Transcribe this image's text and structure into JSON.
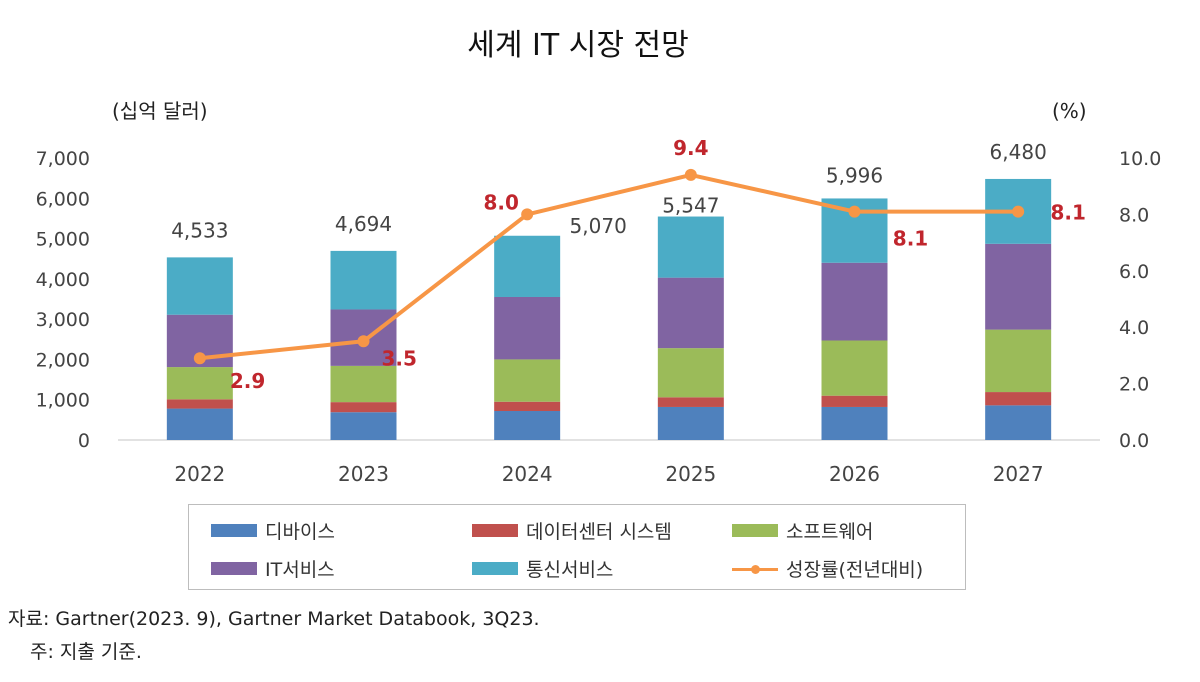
{
  "chart_data": {
    "type": "bar",
    "stacked": true,
    "title": "세계 IT 시장 전망",
    "ylabel_left": "(십억 달러)",
    "ylabel_right": "(%)",
    "categories": [
      "2022",
      "2023",
      "2024",
      "2025",
      "2026",
      "2027"
    ],
    "ylim_left": [
      0,
      7000
    ],
    "yticks_left": [
      "0",
      "1,000",
      "2,000",
      "3,000",
      "4,000",
      "5,000",
      "6,000",
      "7,000"
    ],
    "ylim_right": [
      0,
      10
    ],
    "yticks_right": [
      "0.0",
      "2.0",
      "4.0",
      "6.0",
      "8.0",
      "10.0"
    ],
    "series": [
      {
        "name": "디바이스",
        "color": "#4f81bd",
        "values": [
          780,
          690,
          720,
          820,
          820,
          860
        ]
      },
      {
        "name": "데이터센터 시스템",
        "color": "#c0504d",
        "values": [
          230,
          250,
          230,
          240,
          280,
          330
        ]
      },
      {
        "name": "소프트웨어",
        "color": "#9bbb59",
        "values": [
          800,
          900,
          1050,
          1220,
          1370,
          1550
        ]
      },
      {
        "name": "IT서비스",
        "color": "#8064a2",
        "values": [
          1300,
          1400,
          1550,
          1750,
          1930,
          2130
        ]
      },
      {
        "name": "통신서비스",
        "color": "#4bacc6",
        "values": [
          1423,
          1454,
          1520,
          1517,
          1596,
          1610
        ]
      }
    ],
    "totals": [
      "4,533",
      "4,694",
      "5,070",
      "5,547",
      "5,996",
      "6,480"
    ],
    "line": {
      "name": "성장률(전년대비)",
      "color": "#f79646",
      "values": [
        2.9,
        3.5,
        8.0,
        9.4,
        8.1,
        8.1
      ],
      "labels": [
        "2.9",
        "3.5",
        "8.0",
        "9.4",
        "8.1",
        "8.1"
      ],
      "label_color": "#c0262d"
    }
  },
  "legend": {
    "items": [
      "디바이스",
      "데이터센터 시스템",
      "소프트웨어",
      "IT서비스",
      "통신서비스",
      "성장률(전년대비)"
    ]
  },
  "notes": {
    "source": "자료: Gartner(2023. 9), Gartner Market Databook, 3Q23.",
    "note": "주: 지출 기준."
  }
}
